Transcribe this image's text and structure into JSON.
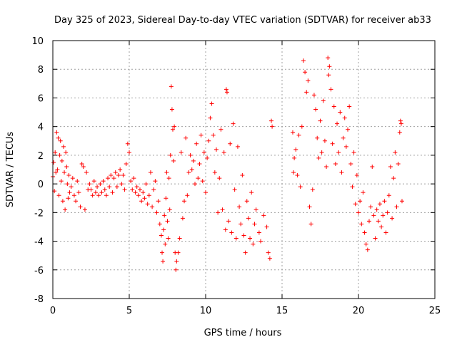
{
  "chart_data": {
    "type": "scatter",
    "title": "Day 325 of 2023, Sidereal Day-to-day VTEC variation (SDTVAR) for receiver ab33",
    "xlabel": "GPS time / hours",
    "ylabel": "SDTVAR / TECUs",
    "xlim": [
      0,
      25
    ],
    "ylim": [
      -8,
      10
    ],
    "xticks": [
      "0",
      "5",
      "10",
      "15",
      "20",
      "25"
    ],
    "yticks": [
      "-8",
      "-6",
      "-4",
      "-2",
      "0",
      "2",
      "4",
      "6",
      "8",
      "10"
    ],
    "grid": true,
    "marker": "+",
    "marker_color": "#ff0000",
    "series": [
      {
        "name": "SDTVAR",
        "points": [
          [
            0.0,
            0.5
          ],
          [
            0.05,
            1.5
          ],
          [
            0.1,
            -0.5
          ],
          [
            0.15,
            2.2
          ],
          [
            0.2,
            0.8
          ],
          [
            0.25,
            3.6
          ],
          [
            0.3,
            1.0
          ],
          [
            0.35,
            3.2
          ],
          [
            0.4,
            -0.8
          ],
          [
            0.45,
            2.0
          ],
          [
            0.5,
            3.0
          ],
          [
            0.55,
            0.2
          ],
          [
            0.6,
            1.6
          ],
          [
            0.65,
            -1.2
          ],
          [
            0.7,
            2.6
          ],
          [
            0.75,
            0.8
          ],
          [
            0.8,
            -1.8
          ],
          [
            0.85,
            2.2
          ],
          [
            0.9,
            1.2
          ],
          [
            0.95,
            0.0
          ],
          [
            1.0,
            -1.0
          ],
          [
            1.05,
            0.6
          ],
          [
            1.1,
            -0.6
          ],
          [
            1.2,
            -0.2
          ],
          [
            1.3,
            0.4
          ],
          [
            1.4,
            -0.8
          ],
          [
            1.5,
            -1.2
          ],
          [
            1.6,
            0.2
          ],
          [
            1.7,
            -0.6
          ],
          [
            1.8,
            -1.6
          ],
          [
            1.9,
            1.4
          ],
          [
            2.0,
            1.2
          ],
          [
            2.1,
            -1.8
          ],
          [
            2.2,
            0.8
          ],
          [
            2.3,
            -0.4
          ],
          [
            2.4,
            0.0
          ],
          [
            2.5,
            -0.4
          ],
          [
            2.6,
            -0.8
          ],
          [
            2.7,
            0.2
          ],
          [
            2.8,
            -0.6
          ],
          [
            2.9,
            -0.2
          ],
          [
            3.0,
            -0.8
          ],
          [
            3.1,
            0.0
          ],
          [
            3.2,
            -0.6
          ],
          [
            3.3,
            0.2
          ],
          [
            3.4,
            -0.4
          ],
          [
            3.5,
            -0.8
          ],
          [
            3.6,
            0.4
          ],
          [
            3.7,
            -0.2
          ],
          [
            3.8,
            0.6
          ],
          [
            3.9,
            -0.6
          ],
          [
            4.0,
            0.4
          ],
          [
            4.1,
            0.8
          ],
          [
            4.2,
            -0.2
          ],
          [
            4.3,
            0.6
          ],
          [
            4.4,
            1.0
          ],
          [
            4.5,
            0.0
          ],
          [
            4.6,
            0.6
          ],
          [
            4.7,
            -0.4
          ],
          [
            4.8,
            1.4
          ],
          [
            4.9,
            2.8
          ],
          [
            5.0,
            2.2
          ],
          [
            5.1,
            0.2
          ],
          [
            5.2,
            -0.4
          ],
          [
            5.3,
            0.4
          ],
          [
            5.4,
            -0.6
          ],
          [
            5.5,
            -0.2
          ],
          [
            5.6,
            -0.8
          ],
          [
            5.7,
            -0.4
          ],
          [
            5.8,
            -1.2
          ],
          [
            5.9,
            -0.6
          ],
          [
            6.0,
            -1.0
          ],
          [
            6.1,
            0.0
          ],
          [
            6.2,
            -1.4
          ],
          [
            6.3,
            -0.8
          ],
          [
            6.4,
            0.8
          ],
          [
            6.5,
            -1.6
          ],
          [
            6.6,
            -0.4
          ],
          [
            6.7,
            0.2
          ],
          [
            6.8,
            -2.0
          ],
          [
            6.9,
            -1.2
          ],
          [
            7.0,
            -2.8
          ],
          [
            7.1,
            -3.6
          ],
          [
            7.15,
            -4.8
          ],
          [
            7.2,
            -5.4
          ],
          [
            7.25,
            -3.2
          ],
          [
            7.3,
            -2.2
          ],
          [
            7.35,
            -4.2
          ],
          [
            7.4,
            -1.0
          ],
          [
            7.45,
            0.8
          ],
          [
            7.5,
            -2.6
          ],
          [
            7.55,
            -3.8
          ],
          [
            7.6,
            0.4
          ],
          [
            7.65,
            -1.8
          ],
          [
            7.7,
            2.0
          ],
          [
            7.75,
            6.8
          ],
          [
            7.8,
            5.2
          ],
          [
            7.85,
            3.8
          ],
          [
            7.9,
            1.6
          ],
          [
            7.95,
            4.0
          ],
          [
            8.0,
            -4.8
          ],
          [
            8.05,
            -6.0
          ],
          [
            8.1,
            -5.4
          ],
          [
            8.2,
            -4.8
          ],
          [
            8.3,
            -3.8
          ],
          [
            8.4,
            2.2
          ],
          [
            8.5,
            -2.4
          ],
          [
            8.6,
            -1.2
          ],
          [
            8.7,
            3.2
          ],
          [
            8.8,
            -0.8
          ],
          [
            8.9,
            0.8
          ],
          [
            9.0,
            2.0
          ],
          [
            9.1,
            1.0
          ],
          [
            9.2,
            1.6
          ],
          [
            9.3,
            0.0
          ],
          [
            9.4,
            2.8
          ],
          [
            9.5,
            0.4
          ],
          [
            9.6,
            1.4
          ],
          [
            9.7,
            3.4
          ],
          [
            9.8,
            0.2
          ],
          [
            9.9,
            2.2
          ],
          [
            10.0,
            -0.6
          ],
          [
            10.1,
            1.8
          ],
          [
            10.2,
            3.0
          ],
          [
            10.3,
            4.6
          ],
          [
            10.4,
            5.6
          ],
          [
            10.5,
            3.4
          ],
          [
            10.6,
            0.8
          ],
          [
            10.7,
            2.4
          ],
          [
            10.8,
            -2.0
          ],
          [
            10.9,
            0.4
          ],
          [
            11.0,
            3.8
          ],
          [
            11.1,
            -1.8
          ],
          [
            11.2,
            2.2
          ],
          [
            11.3,
            -3.2
          ],
          [
            11.35,
            6.6
          ],
          [
            11.4,
            6.4
          ],
          [
            11.5,
            -2.6
          ],
          [
            11.6,
            2.8
          ],
          [
            11.7,
            -3.4
          ],
          [
            11.8,
            4.2
          ],
          [
            11.9,
            -0.4
          ],
          [
            12.0,
            -3.8
          ],
          [
            12.1,
            2.6
          ],
          [
            12.2,
            -1.6
          ],
          [
            12.3,
            -2.8
          ],
          [
            12.4,
            0.6
          ],
          [
            12.5,
            -3.6
          ],
          [
            12.6,
            -4.8
          ],
          [
            12.7,
            -1.2
          ],
          [
            12.8,
            -2.4
          ],
          [
            12.9,
            -3.8
          ],
          [
            13.0,
            -0.6
          ],
          [
            13.1,
            -4.2
          ],
          [
            13.2,
            -2.8
          ],
          [
            13.3,
            -1.8
          ],
          [
            13.5,
            -3.4
          ],
          [
            13.6,
            -4.0
          ],
          [
            13.8,
            -2.2
          ],
          [
            14.0,
            -3.0
          ],
          [
            14.1,
            -4.8
          ],
          [
            14.2,
            -5.2
          ],
          [
            14.3,
            4.4
          ],
          [
            14.35,
            4.0
          ],
          [
            15.7,
            3.6
          ],
          [
            15.75,
            0.8
          ],
          [
            15.8,
            1.8
          ],
          [
            15.9,
            2.4
          ],
          [
            16.0,
            0.6
          ],
          [
            16.1,
            3.4
          ],
          [
            16.2,
            -0.2
          ],
          [
            16.3,
            4.0
          ],
          [
            16.4,
            8.6
          ],
          [
            16.5,
            7.8
          ],
          [
            16.6,
            6.4
          ],
          [
            16.7,
            7.2
          ],
          [
            16.8,
            -1.6
          ],
          [
            16.9,
            -2.8
          ],
          [
            17.0,
            -0.4
          ],
          [
            17.1,
            6.2
          ],
          [
            17.2,
            5.2
          ],
          [
            17.3,
            3.2
          ],
          [
            17.4,
            1.8
          ],
          [
            17.5,
            4.4
          ],
          [
            17.6,
            2.2
          ],
          [
            17.7,
            5.8
          ],
          [
            17.8,
            3.0
          ],
          [
            17.9,
            1.2
          ],
          [
            18.0,
            8.8
          ],
          [
            18.05,
            7.6
          ],
          [
            18.1,
            8.2
          ],
          [
            18.2,
            6.6
          ],
          [
            18.3,
            2.8
          ],
          [
            18.4,
            5.4
          ],
          [
            18.5,
            1.4
          ],
          [
            18.6,
            4.2
          ],
          [
            18.7,
            2.2
          ],
          [
            18.8,
            5.0
          ],
          [
            18.9,
            0.8
          ],
          [
            19.0,
            3.2
          ],
          [
            19.1,
            4.6
          ],
          [
            19.2,
            2.6
          ],
          [
            19.3,
            3.8
          ],
          [
            19.4,
            5.4
          ],
          [
            19.5,
            1.4
          ],
          [
            19.6,
            -0.2
          ],
          [
            19.7,
            2.2
          ],
          [
            19.8,
            -1.4
          ],
          [
            19.9,
            0.6
          ],
          [
            20.0,
            -2.0
          ],
          [
            20.1,
            -1.2
          ],
          [
            20.2,
            -2.8
          ],
          [
            20.3,
            -0.6
          ],
          [
            20.4,
            -3.4
          ],
          [
            20.5,
            -4.2
          ],
          [
            20.6,
            -4.6
          ],
          [
            20.7,
            -2.6
          ],
          [
            20.8,
            -1.6
          ],
          [
            20.9,
            1.2
          ],
          [
            21.0,
            -2.2
          ],
          [
            21.1,
            -3.8
          ],
          [
            21.2,
            -1.8
          ],
          [
            21.3,
            -2.6
          ],
          [
            21.4,
            -1.4
          ],
          [
            21.5,
            -3.0
          ],
          [
            21.6,
            -2.2
          ],
          [
            21.7,
            -1.2
          ],
          [
            21.8,
            -3.4
          ],
          [
            21.9,
            -2.0
          ],
          [
            22.0,
            -0.8
          ],
          [
            22.1,
            1.2
          ],
          [
            22.2,
            -2.4
          ],
          [
            22.3,
            0.4
          ],
          [
            22.4,
            2.2
          ],
          [
            22.5,
            -1.6
          ],
          [
            22.6,
            1.4
          ],
          [
            22.7,
            3.6
          ],
          [
            22.75,
            4.4
          ],
          [
            22.8,
            4.2
          ],
          [
            22.85,
            -1.2
          ]
        ]
      }
    ]
  }
}
